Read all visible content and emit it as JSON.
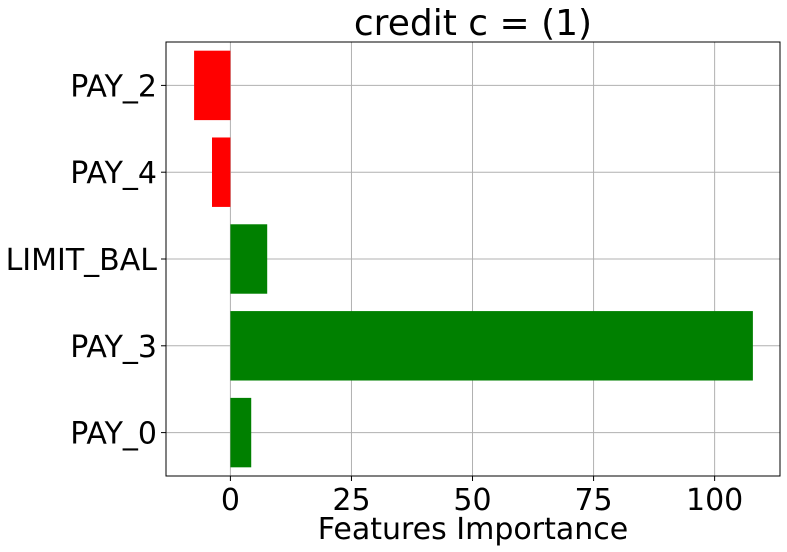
{
  "chart_data": {
    "type": "bar",
    "orientation": "horizontal",
    "title": "credit c = (1)",
    "xlabel": "Features Importance",
    "ylabel": "",
    "categories": [
      "PAY_2",
      "PAY_4",
      "LIMIT_BAL",
      "PAY_3",
      "PAY_0"
    ],
    "values": [
      -7.5,
      -3.8,
      7.6,
      107.9,
      4.3
    ],
    "bar_colors": [
      "#ff0000",
      "#ff0000",
      "#008000",
      "#008000",
      "#008000"
    ],
    "xlim": [
      -13.3,
      113.5
    ],
    "xticks": [
      0,
      25,
      50,
      75,
      100
    ],
    "grid": true,
    "legend": "none"
  }
}
